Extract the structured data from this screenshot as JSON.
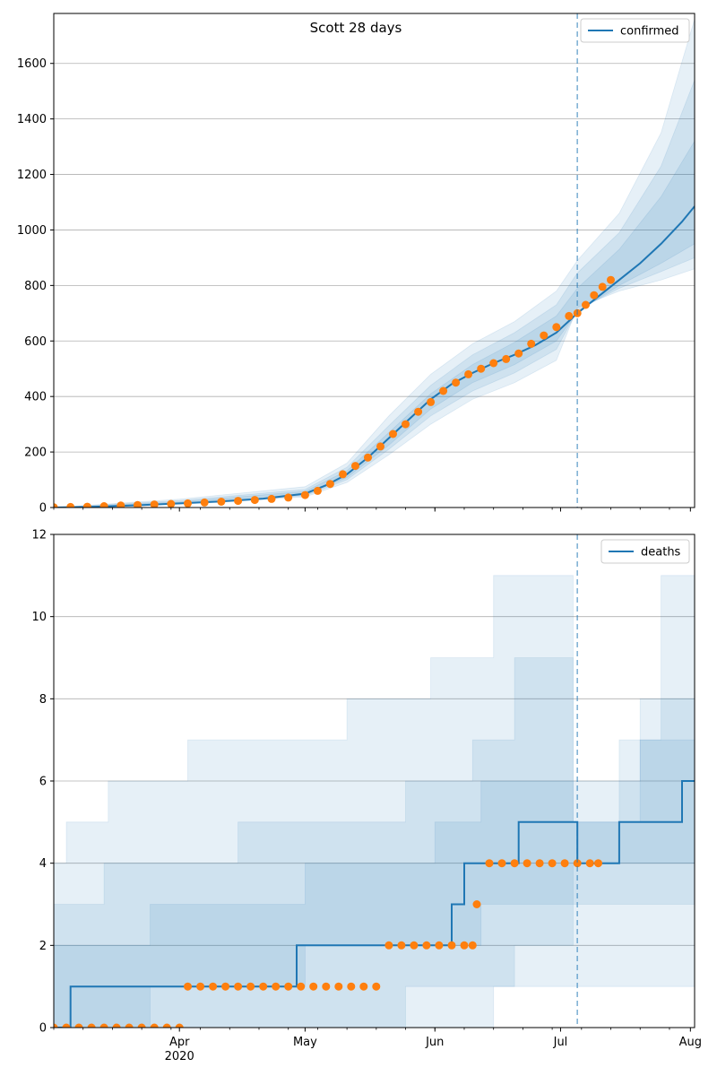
{
  "figure": {
    "title": "Scott 28 days"
  },
  "colors": {
    "series_line": "#1f77b4",
    "observed_points": "#ff7f0e",
    "band": "#1f77b4",
    "grid": "#b0b0b0",
    "cutoff_line": "#1f77b4"
  },
  "x_axis": {
    "start": "2020-03-02",
    "end": "2020-08-02",
    "month_ticks": [
      {
        "date": "2020-04-01",
        "label": "Apr"
      },
      {
        "date": "2020-05-01",
        "label": "May"
      },
      {
        "date": "2020-06-01",
        "label": "Jun"
      },
      {
        "date": "2020-07-01",
        "label": "Jul"
      },
      {
        "date": "2020-08-01",
        "label": "Aug"
      }
    ],
    "year_label": "2020",
    "year_label_under": "Apr"
  },
  "chart_data": [
    {
      "type": "line",
      "legend": "confirmed",
      "legend_position": "top-right",
      "ylim": [
        0,
        1780
      ],
      "yticks": [
        "0",
        "200",
        "400",
        "600",
        "800",
        "1000",
        "1200",
        "1400",
        "1600"
      ],
      "grid": "horizontal",
      "forecast_start": "2020-07-05",
      "model_median": {
        "x": [
          "2020-03-02",
          "2020-03-12",
          "2020-03-22",
          "2020-04-01",
          "2020-04-11",
          "2020-04-21",
          "2020-05-01",
          "2020-05-06",
          "2020-05-11",
          "2020-05-16",
          "2020-05-21",
          "2020-05-26",
          "2020-05-31",
          "2020-06-05",
          "2020-06-10",
          "2020-06-15",
          "2020-06-20",
          "2020-06-25",
          "2020-06-30",
          "2020-07-05",
          "2020-07-10",
          "2020-07-15",
          "2020-07-20",
          "2020-07-25",
          "2020-07-30",
          "2020-08-02"
        ],
        "y": [
          0,
          3,
          8,
          15,
          22,
          32,
          50,
          80,
          120,
          180,
          250,
          320,
          390,
          445,
          485,
          520,
          550,
          585,
          630,
          700,
          760,
          820,
          880,
          950,
          1030,
          1085
        ]
      },
      "bands": [
        {
          "x": [
            "2020-03-02",
            "2020-04-01",
            "2020-05-01",
            "2020-05-11",
            "2020-05-21",
            "2020-05-31",
            "2020-06-10",
            "2020-06-20",
            "2020-06-30",
            "2020-07-05",
            "2020-07-15",
            "2020-07-25",
            "2020-08-02"
          ],
          "lower": [
            0,
            12,
            38,
            90,
            190,
            300,
            390,
            450,
            530,
            720,
            780,
            820,
            860
          ],
          "upper": [
            0,
            30,
            75,
            160,
            330,
            480,
            590,
            670,
            780,
            890,
            1060,
            1350,
            1760
          ]
        },
        {
          "x": [
            "2020-03-02",
            "2020-04-01",
            "2020-05-01",
            "2020-05-11",
            "2020-05-21",
            "2020-05-31",
            "2020-06-10",
            "2020-06-20",
            "2020-06-30",
            "2020-07-05",
            "2020-07-15",
            "2020-07-25",
            "2020-08-02"
          ],
          "lower": [
            0,
            13,
            42,
            100,
            210,
            330,
            420,
            485,
            570,
            710,
            790,
            850,
            900
          ],
          "upper": [
            0,
            25,
            65,
            145,
            295,
            440,
            550,
            630,
            730,
            845,
            990,
            1230,
            1540
          ]
        },
        {
          "x": [
            "2020-03-02",
            "2020-04-01",
            "2020-05-01",
            "2020-05-11",
            "2020-05-21",
            "2020-05-31",
            "2020-06-10",
            "2020-06-20",
            "2020-06-30",
            "2020-07-05",
            "2020-07-15",
            "2020-07-25",
            "2020-08-02"
          ],
          "lower": [
            0,
            14,
            45,
            108,
            225,
            355,
            450,
            515,
            600,
            705,
            800,
            880,
            950
          ],
          "upper": [
            0,
            20,
            58,
            132,
            270,
            410,
            515,
            595,
            690,
            790,
            930,
            1120,
            1320
          ]
        }
      ],
      "observed": {
        "x": [
          "2020-03-02",
          "2020-03-06",
          "2020-03-10",
          "2020-03-14",
          "2020-03-18",
          "2020-03-22",
          "2020-03-26",
          "2020-03-30",
          "2020-04-03",
          "2020-04-07",
          "2020-04-11",
          "2020-04-15",
          "2020-04-19",
          "2020-04-23",
          "2020-04-27",
          "2020-05-01",
          "2020-05-04",
          "2020-05-07",
          "2020-05-10",
          "2020-05-13",
          "2020-05-16",
          "2020-05-19",
          "2020-05-22",
          "2020-05-25",
          "2020-05-28",
          "2020-05-31",
          "2020-06-03",
          "2020-06-06",
          "2020-06-09",
          "2020-06-12",
          "2020-06-15",
          "2020-06-18",
          "2020-06-21",
          "2020-06-24",
          "2020-06-27",
          "2020-06-30",
          "2020-07-03",
          "2020-07-05",
          "2020-07-07",
          "2020-07-09",
          "2020-07-11",
          "2020-07-13"
        ],
        "y": [
          1,
          2,
          3,
          5,
          7,
          9,
          11,
          13,
          15,
          18,
          21,
          24,
          27,
          31,
          36,
          45,
          60,
          85,
          120,
          150,
          180,
          220,
          265,
          300,
          345,
          380,
          420,
          450,
          480,
          500,
          520,
          535,
          555,
          590,
          620,
          650,
          690,
          700,
          730,
          765,
          795,
          820
        ]
      }
    },
    {
      "type": "line",
      "legend": "deaths",
      "legend_position": "top-right",
      "ylim": [
        0,
        12
      ],
      "yticks": [
        "0",
        "2",
        "4",
        "6",
        "8",
        "10",
        "12"
      ],
      "grid": "horizontal",
      "forecast_start": "2020-07-05",
      "model_median": {
        "x": [
          "2020-03-02",
          "2020-03-06",
          "2020-03-06",
          "2020-04-29",
          "2020-04-29",
          "2020-05-21",
          "2020-05-21",
          "2020-06-05",
          "2020-06-05",
          "2020-06-08",
          "2020-06-08",
          "2020-06-21",
          "2020-06-21",
          "2020-07-05",
          "2020-07-05",
          "2020-07-15",
          "2020-07-15",
          "2020-07-30",
          "2020-07-30",
          "2020-08-02"
        ],
        "y": [
          0,
          0,
          1,
          1,
          2,
          2,
          2,
          2,
          3,
          3,
          4,
          4,
          5,
          5,
          4,
          4,
          5,
          5,
          6,
          6
        ]
      },
      "bands": [
        {
          "x": [
            "2020-03-02",
            "2020-03-05",
            "2020-03-05",
            "2020-03-15",
            "2020-03-15",
            "2020-04-03",
            "2020-04-03",
            "2020-05-11",
            "2020-05-11",
            "2020-05-31",
            "2020-05-31",
            "2020-06-15",
            "2020-06-15",
            "2020-07-04",
            "2020-07-04",
            "2020-07-15",
            "2020-07-15",
            "2020-07-25",
            "2020-07-25",
            "2020-08-02"
          ],
          "lower": [
            0,
            0,
            0,
            0,
            0,
            0,
            0,
            0,
            0,
            0,
            0,
            0,
            1,
            1,
            1,
            1,
            1,
            1,
            1,
            1
          ],
          "upper": [
            4,
            4,
            5,
            5,
            6,
            6,
            7,
            7,
            8,
            8,
            9,
            9,
            11,
            11,
            5,
            5,
            7,
            7,
            11,
            11
          ]
        },
        {
          "x": [
            "2020-03-02",
            "2020-03-14",
            "2020-03-14",
            "2020-04-15",
            "2020-04-15",
            "2020-05-25",
            "2020-05-25",
            "2020-06-10",
            "2020-06-10",
            "2020-06-20",
            "2020-06-20",
            "2020-07-04",
            "2020-07-04",
            "2020-07-20",
            "2020-07-20",
            "2020-08-02"
          ],
          "lower": [
            0,
            0,
            0,
            0,
            0,
            0,
            1,
            1,
            1,
            1,
            2,
            2,
            3,
            3,
            3,
            3
          ],
          "upper": [
            3,
            3,
            4,
            4,
            5,
            5,
            6,
            6,
            7,
            7,
            9,
            9,
            6,
            6,
            8,
            8
          ]
        },
        {
          "x": [
            "2020-03-02",
            "2020-03-25",
            "2020-03-25",
            "2020-05-01",
            "2020-05-01",
            "2020-06-01",
            "2020-06-01",
            "2020-06-12",
            "2020-06-12",
            "2020-07-04",
            "2020-07-04",
            "2020-07-20",
            "2020-07-20",
            "2020-08-02"
          ],
          "lower": [
            0,
            0,
            1,
            1,
            2,
            2,
            2,
            2,
            3,
            3,
            4,
            4,
            4,
            4
          ],
          "upper": [
            2,
            2,
            3,
            3,
            4,
            4,
            5,
            5,
            6,
            6,
            5,
            5,
            7,
            7
          ]
        }
      ],
      "observed": {
        "x": [
          "2020-03-02",
          "2020-03-05",
          "2020-03-08",
          "2020-03-11",
          "2020-03-14",
          "2020-03-17",
          "2020-03-20",
          "2020-03-23",
          "2020-03-26",
          "2020-03-29",
          "2020-04-01",
          "2020-04-03",
          "2020-04-06",
          "2020-04-09",
          "2020-04-12",
          "2020-04-15",
          "2020-04-18",
          "2020-04-21",
          "2020-04-24",
          "2020-04-27",
          "2020-04-30",
          "2020-05-03",
          "2020-05-06",
          "2020-05-09",
          "2020-05-12",
          "2020-05-15",
          "2020-05-18",
          "2020-05-21",
          "2020-05-24",
          "2020-05-27",
          "2020-05-30",
          "2020-06-02",
          "2020-06-05",
          "2020-06-08",
          "2020-06-10",
          "2020-06-11",
          "2020-06-14",
          "2020-06-17",
          "2020-06-20",
          "2020-06-23",
          "2020-06-26",
          "2020-06-29",
          "2020-07-02",
          "2020-07-05",
          "2020-07-08",
          "2020-07-10"
        ],
        "y": [
          0,
          0,
          0,
          0,
          0,
          0,
          0,
          0,
          0,
          0,
          0,
          1,
          1,
          1,
          1,
          1,
          1,
          1,
          1,
          1,
          1,
          1,
          1,
          1,
          1,
          1,
          1,
          2,
          2,
          2,
          2,
          2,
          2,
          2,
          2,
          3,
          4,
          4,
          4,
          4,
          4,
          4,
          4,
          4,
          4,
          4
        ]
      }
    }
  ]
}
